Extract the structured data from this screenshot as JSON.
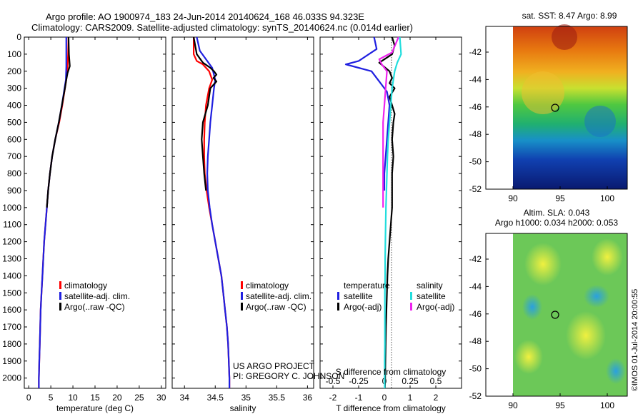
{
  "header": {
    "title_line1": "Argo profile: AO 1900974_183 24-Jun-2014 20140624_168 46.033S 94.323E",
    "title_line2": "Climatology: CARS2009. Satellite-adjusted climatology: synTS_20140624.nc (0.014d earlier)"
  },
  "colors": {
    "climatology": "#ff0000",
    "satellite": "#1f1fe0",
    "argo": "#000000",
    "cyan": "#22dddd",
    "magenta": "#ee22ee"
  },
  "depth_axis": {
    "ticks": [
      0,
      100,
      200,
      300,
      400,
      500,
      600,
      700,
      800,
      900,
      1000,
      1100,
      1200,
      1300,
      1400,
      1500,
      1600,
      1700,
      1800,
      1900,
      2000
    ],
    "range": [
      0,
      2060
    ]
  },
  "chart_data": [
    {
      "type": "line",
      "id": "temperature",
      "xlabel": "temperature (deg C)",
      "xlim": [
        -1,
        31
      ],
      "xticks": [
        0,
        5,
        10,
        15,
        20,
        25,
        30
      ],
      "legend": [
        "climatology",
        "satellite-adj. clim.",
        "Argo(..raw -QC)"
      ],
      "series": [
        {
          "name": "climatology",
          "color": "red",
          "points": [
            [
              9.0,
              0
            ],
            [
              8.9,
              100
            ],
            [
              8.8,
              170
            ],
            [
              8.5,
              250
            ],
            [
              8.2,
              300
            ],
            [
              7.6,
              400
            ],
            [
              6.9,
              500
            ],
            [
              6.0,
              600
            ],
            [
              5.3,
              700
            ],
            [
              4.8,
              800
            ],
            [
              4.4,
              900
            ],
            [
              4.1,
              1000
            ],
            [
              3.8,
              1100
            ],
            [
              3.5,
              1200
            ],
            [
              3.3,
              1300
            ],
            [
              3.1,
              1400
            ],
            [
              2.9,
              1500
            ],
            [
              2.7,
              1600
            ],
            [
              2.6,
              1700
            ],
            [
              2.5,
              1800
            ],
            [
              2.4,
              1900
            ],
            [
              2.3,
              2000
            ],
            [
              2.3,
              2060
            ]
          ]
        },
        {
          "name": "satellite-adj. clim.",
          "color": "blue",
          "points": [
            [
              8.5,
              0
            ],
            [
              8.5,
              100
            ],
            [
              8.5,
              170
            ],
            [
              8.4,
              250
            ],
            [
              8.1,
              300
            ],
            [
              7.5,
              400
            ],
            [
              6.8,
              500
            ],
            [
              6.0,
              600
            ],
            [
              5.3,
              700
            ],
            [
              4.8,
              800
            ],
            [
              4.4,
              900
            ],
            [
              4.1,
              1000
            ],
            [
              3.8,
              1100
            ],
            [
              3.5,
              1200
            ],
            [
              3.3,
              1300
            ],
            [
              3.1,
              1400
            ],
            [
              2.9,
              1500
            ],
            [
              2.7,
              1600
            ],
            [
              2.6,
              1700
            ],
            [
              2.5,
              1800
            ],
            [
              2.4,
              1900
            ],
            [
              2.3,
              2000
            ],
            [
              2.3,
              2060
            ]
          ]
        },
        {
          "name": "Argo(..raw -QC)",
          "color": "black",
          "points": [
            [
              9.0,
              0
            ],
            [
              9.1,
              100
            ],
            [
              9.3,
              170
            ],
            [
              8.8,
              210
            ],
            [
              8.5,
              250
            ],
            [
              8.2,
              300
            ],
            [
              7.5,
              400
            ],
            [
              6.8,
              500
            ],
            [
              6.0,
              600
            ],
            [
              5.3,
              700
            ],
            [
              4.8,
              800
            ],
            [
              4.4,
              900
            ],
            [
              4.1,
              1000
            ]
          ]
        }
      ]
    },
    {
      "type": "line",
      "id": "salinity",
      "xlabel": "salinity",
      "xlim": [
        33.8,
        36.1
      ],
      "xticks": [
        34,
        34.5,
        35,
        35.5,
        36
      ],
      "legend": [
        "climatology",
        "satellite-adj. clim.",
        "Argo(..raw -QC)"
      ],
      "series": [
        {
          "name": "climatology",
          "color": "red",
          "points": [
            [
              34.15,
              0
            ],
            [
              34.15,
              100
            ],
            [
              34.2,
              140
            ],
            [
              34.3,
              160
            ],
            [
              34.4,
              200
            ],
            [
              34.45,
              250
            ],
            [
              34.4,
              300
            ],
            [
              34.35,
              400
            ],
            [
              34.33,
              500
            ],
            [
              34.32,
              600
            ],
            [
              34.32,
              700
            ],
            [
              34.33,
              800
            ],
            [
              34.36,
              900
            ],
            [
              34.4,
              1000
            ],
            [
              34.45,
              1100
            ],
            [
              34.5,
              1200
            ],
            [
              34.55,
              1300
            ],
            [
              34.6,
              1400
            ],
            [
              34.63,
              1500
            ],
            [
              34.66,
              1600
            ],
            [
              34.69,
              1700
            ],
            [
              34.71,
              1800
            ],
            [
              34.72,
              1900
            ],
            [
              34.73,
              2000
            ],
            [
              34.73,
              2060
            ]
          ]
        },
        {
          "name": "satellite-adj. clim.",
          "color": "blue",
          "points": [
            [
              34.2,
              0
            ],
            [
              34.25,
              80
            ],
            [
              34.35,
              130
            ],
            [
              34.45,
              180
            ],
            [
              34.5,
              250
            ],
            [
              34.48,
              300
            ],
            [
              34.45,
              400
            ],
            [
              34.42,
              500
            ],
            [
              34.4,
              600
            ],
            [
              34.38,
              700
            ],
            [
              34.37,
              800
            ],
            [
              34.38,
              900
            ],
            [
              34.41,
              1000
            ],
            [
              34.45,
              1100
            ],
            [
              34.5,
              1200
            ],
            [
              34.55,
              1300
            ],
            [
              34.6,
              1400
            ],
            [
              34.63,
              1500
            ],
            [
              34.66,
              1600
            ],
            [
              34.69,
              1700
            ],
            [
              34.71,
              1800
            ],
            [
              34.72,
              1900
            ],
            [
              34.73,
              2000
            ],
            [
              34.73,
              2060
            ]
          ]
        },
        {
          "name": "Argo(..raw -QC)",
          "color": "black",
          "points": [
            [
              34.15,
              0
            ],
            [
              34.2,
              100
            ],
            [
              34.3,
              150
            ],
            [
              34.42,
              180
            ],
            [
              34.48,
              200
            ],
            [
              34.52,
              220
            ],
            [
              34.47,
              240
            ],
            [
              34.52,
              260
            ],
            [
              34.47,
              280
            ],
            [
              34.42,
              300
            ],
            [
              34.38,
              400
            ],
            [
              34.3,
              500
            ],
            [
              34.28,
              600
            ],
            [
              34.3,
              700
            ],
            [
              34.32,
              800
            ],
            [
              34.35,
              900
            ]
          ]
        }
      ]
    },
    {
      "type": "line",
      "id": "difference",
      "xlabel": "T difference from climatology",
      "xlabel2": "S difference from climatology",
      "xlim": [
        -2.5,
        3.0
      ],
      "xticks": [
        -2,
        -1,
        0,
        1,
        2
      ],
      "s_ticks": [
        {
          "v": -0.5,
          "label": "-0.5"
        },
        {
          "v": -0.25,
          "label": "-0.25"
        },
        {
          "v": 0,
          "label": "0"
        },
        {
          "v": 0.25,
          "label": "0.25"
        },
        {
          "v": 0.5,
          "label": "0.5"
        }
      ],
      "legend_groups": {
        "temperature": "temperature",
        "salinity": "salinity"
      },
      "legend": [
        "satellite",
        "Argo(-adj)",
        "satellite",
        "Argo(-adj)"
      ],
      "series": [
        {
          "name": "T satellite",
          "color": "blue",
          "points": [
            [
              -0.4,
              0
            ],
            [
              -0.3,
              70
            ],
            [
              -1.0,
              140
            ],
            [
              -1.5,
              160
            ],
            [
              -1.0,
              180
            ],
            [
              -0.5,
              200
            ],
            [
              -0.2,
              260
            ],
            [
              0.1,
              320
            ],
            [
              0.2,
              400
            ],
            [
              0.15,
              500
            ],
            [
              0.1,
              600
            ],
            [
              0.05,
              700
            ],
            [
              0.0,
              800
            ],
            [
              0.0,
              900
            ]
          ]
        },
        {
          "name": "T Argo(-adj)",
          "color": "black",
          "points": [
            [
              0.3,
              0
            ],
            [
              0.4,
              50
            ],
            [
              0.3,
              100
            ],
            [
              -0.2,
              150
            ],
            [
              0.2,
              200
            ],
            [
              0.3,
              240
            ],
            [
              0.2,
              270
            ],
            [
              0.4,
              300
            ],
            [
              0.2,
              350
            ],
            [
              0.3,
              400
            ],
            [
              0.4,
              450
            ],
            [
              0.35,
              500
            ],
            [
              0.3,
              600
            ],
            [
              0.35,
              700
            ],
            [
              0.3,
              800
            ],
            [
              0.3,
              900
            ],
            [
              0.3,
              1000
            ],
            [
              0.25,
              1100
            ],
            [
              0.2,
              1200
            ],
            [
              0.15,
              1300
            ],
            [
              0.12,
              1400
            ],
            [
              0.1,
              1500
            ],
            [
              0.08,
              1600
            ],
            [
              0.06,
              1700
            ],
            [
              0.05,
              1800
            ],
            [
              0.04,
              1900
            ],
            [
              0.03,
              2000
            ],
            [
              0.02,
              2060
            ]
          ]
        },
        {
          "name": "S satellite",
          "color": "cyan",
          "points": [
            [
              0.6,
              0
            ],
            [
              0.65,
              100
            ],
            [
              0.5,
              150
            ],
            [
              0.4,
              200
            ],
            [
              0.3,
              300
            ],
            [
              0.25,
              400
            ],
            [
              0.2,
              500
            ],
            [
              0.15,
              600
            ],
            [
              0.12,
              700
            ],
            [
              0.1,
              800
            ],
            [
              0.08,
              900
            ],
            [
              0.06,
              1000
            ],
            [
              0.05,
              1100
            ],
            [
              0.04,
              1200
            ],
            [
              0.03,
              1300
            ],
            [
              0.03,
              1400
            ],
            [
              0.02,
              1500
            ],
            [
              0.02,
              1600
            ],
            [
              0.02,
              1700
            ],
            [
              0.02,
              1800
            ],
            [
              0.01,
              1900
            ],
            [
              0.01,
              2000
            ],
            [
              0.01,
              2060
            ]
          ]
        },
        {
          "name": "S Argo(-adj)",
          "color": "magenta",
          "points": [
            [
              0.55,
              0
            ],
            [
              0.3,
              90
            ],
            [
              -0.2,
              130
            ],
            [
              -0.1,
              160
            ],
            [
              0.1,
              200
            ],
            [
              0.05,
              300
            ],
            [
              0.0,
              400
            ],
            [
              -0.05,
              500
            ],
            [
              -0.05,
              600
            ],
            [
              -0.05,
              700
            ],
            [
              -0.05,
              800
            ],
            [
              -0.05,
              900
            ],
            [
              -0.05,
              1000
            ]
          ]
        }
      ]
    }
  ],
  "map_top": {
    "title": "sat. SST: 8.47 Argo: 8.99",
    "yticks": [
      "-42",
      "-44",
      "-46",
      "-48",
      "-50",
      "-52"
    ],
    "xticks": [
      "90",
      "95",
      "100"
    ]
  },
  "map_bottom": {
    "title_line1": "Altim. SLA: 0.043",
    "title_line2": "Argo h1000: 0.034 h2000: 0.053",
    "yticks": [
      "-42",
      "-44",
      "-46",
      "-48",
      "-50",
      "-52"
    ],
    "xticks": [
      "90",
      "95",
      "100"
    ]
  },
  "annotations": {
    "project_line1": "US ARGO PROJECT",
    "project_line2": "PI: GREGORY C. JOHNSON",
    "stamp": "©IMOS 01-Jul-2014 20:00:55"
  }
}
